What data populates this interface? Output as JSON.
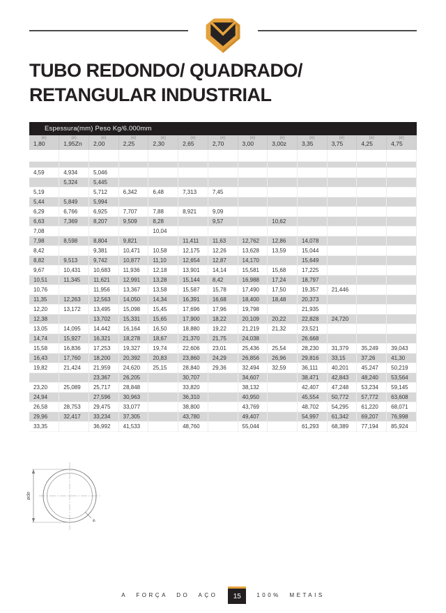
{
  "header": {
    "logo_name": "metais-shield-logo",
    "colors": {
      "gold": "#E5A23C",
      "gold_dark": "#CE8F2F",
      "dark": "#262223",
      "rule": "#4A4A4A"
    }
  },
  "title": {
    "line1": "TUBO REDONDO/ QUADRADO/",
    "line2": "RETANGULAR INDUSTRIAL"
  },
  "table": {
    "caption": "Espessura(mm) Peso Kg/6.000mm",
    "unit_label": "(e)",
    "columns": [
      "1,80",
      "1,95Zn",
      "2,00",
      "2,25",
      "2,30",
      "2,65",
      "2,70",
      "3,00",
      "3,00z",
      "3,35",
      "3,75",
      "4,25",
      "4,75"
    ],
    "rows": [
      [
        "4,59",
        "4,934",
        "5,046",
        "",
        "",
        "",
        "",
        "",
        "",
        "",
        "",
        "",
        ""
      ],
      [
        "",
        "5,324",
        "5,445",
        "",
        "",
        "",
        "",
        "",
        "",
        "",
        "",
        "",
        ""
      ],
      [
        "5,19",
        "",
        "5,712",
        "6,342",
        "6,48",
        "7,313",
        "7,45",
        "",
        "",
        "",
        "",
        "",
        ""
      ],
      [
        "5,44",
        "5,849",
        "5,994",
        "",
        "",
        "",
        "",
        "",
        "",
        "",
        "",
        "",
        ""
      ],
      [
        "6,29",
        "6,766",
        "6,925",
        "7,707",
        "7,88",
        "8,921",
        "9,09",
        "",
        "",
        "",
        "",
        "",
        ""
      ],
      [
        "6,63",
        "7,369",
        "8,207",
        "9,509",
        "8,28",
        "",
        "9,57",
        "",
        "10,62",
        "",
        "",
        "",
        ""
      ],
      [
        "7,08",
        "",
        "",
        "",
        "10,04",
        "",
        "",
        "",
        "",
        "",
        "",
        "",
        ""
      ],
      [
        "7,98",
        "8,598",
        "8,804",
        "9,821",
        "",
        "11,411",
        "11,63",
        "12,762",
        "12,86",
        "14,078",
        "",
        "",
        ""
      ],
      [
        "8,42",
        "",
        "9,381",
        "10,471",
        "10,58",
        "12,175",
        "12,26",
        "13,628",
        "13,59",
        "15,044",
        "",
        "",
        ""
      ],
      [
        "8,82",
        "9,513",
        "9,742",
        "10,877",
        "11,10",
        "12,654",
        "12,87",
        "14,170",
        "",
        "15,649",
        "",
        "",
        ""
      ],
      [
        "9,67",
        "10,431",
        "10,683",
        "11,936",
        "12,18",
        "13,901",
        "14,14",
        "15,581",
        "15,68",
        "17,225",
        "",
        "",
        ""
      ],
      [
        "10,51",
        "11,345",
        "11,621",
        "12,991",
        "13,28",
        "15,144",
        "8,42",
        "16,988",
        "17,24",
        "18,797",
        "",
        "",
        ""
      ],
      [
        "10,76",
        "",
        "11,956",
        "13,367",
        "13,58",
        "15,587",
        "15,78",
        "17,490",
        "17,50",
        "19,357",
        "21,446",
        "",
        ""
      ],
      [
        "11,35",
        "12,263",
        "12,563",
        "14,050",
        "14,34",
        "16,391",
        "16,68",
        "18,400",
        "18,48",
        "20,373",
        "",
        "",
        ""
      ],
      [
        "12,20",
        "13,172",
        "13,495",
        "15,098",
        "15,45",
        "17,696",
        "17,96",
        "19,798",
        "",
        "21,935",
        "",
        "",
        ""
      ],
      [
        "12,38",
        "",
        "13,702",
        "15,331",
        "15,65",
        "17,900",
        "18,22",
        "20,109",
        "20,22",
        "22,828",
        "24,720",
        "",
        ""
      ],
      [
        "13,05",
        "14,095",
        "14,442",
        "16,164",
        "16,50",
        "18,880",
        "19,22",
        "21,219",
        "21,32",
        "23,521",
        "",
        "",
        ""
      ],
      [
        "14,74",
        "15,927",
        "16,321",
        "18,278",
        "18,67",
        "21,370",
        "21,75",
        "24,038",
        "",
        "26,668",
        "",
        "",
        ""
      ],
      [
        "15,58",
        "16,836",
        "17,253",
        "19,327",
        "19,74",
        "22,606",
        "23,01",
        "25,436",
        "25,54",
        "28,230",
        "31,379",
        "35,249",
        "39,043"
      ],
      [
        "16,43",
        "17,760",
        "18,200",
        "20,392",
        "20,83",
        "23,860",
        "24,29",
        "26,856",
        "26,96",
        "29,816",
        "33,15",
        "37,26",
        "41,30"
      ],
      [
        "19,82",
        "21,424",
        "21,959",
        "24,620",
        "25,15",
        "28,840",
        "29,36",
        "32,494",
        "32,59",
        "36,111",
        "40,201",
        "45,247",
        "50,219"
      ],
      [
        "",
        "",
        "23,367",
        "26,205",
        "",
        "30,707",
        "",
        "34,607",
        "",
        "38,471",
        "42,843",
        "48,240",
        "53,564"
      ],
      [
        "23,20",
        "25,089",
        "25,717",
        "28,848",
        "",
        "33,820",
        "",
        "38,132",
        "",
        "42,407",
        "47,248",
        "53,234",
        "59,145"
      ],
      [
        "24,94",
        "",
        "27,596",
        "30,963",
        "",
        "36,310",
        "",
        "40,950",
        "",
        "45,554",
        "50,772",
        "57,772",
        "63,608"
      ],
      [
        "26,58",
        "28,753",
        "29,475",
        "33,077",
        "",
        "38,800",
        "",
        "43,769",
        "",
        "48,702",
        "54,295",
        "61,220",
        "68,071"
      ],
      [
        "29,96",
        "32,417",
        "33,234",
        "37,305",
        "",
        "43,780",
        "",
        "49,407",
        "",
        "54,997",
        "61,342",
        "69,207",
        "76,998"
      ],
      [
        "33,35",
        "",
        "36,992",
        "41,533",
        "",
        "48,760",
        "",
        "55,044",
        "",
        "61,293",
        "68,389",
        "77,194",
        "85,924"
      ]
    ]
  },
  "diagram": {
    "name": "round-tube-cross-section",
    "dimension_label": "øde",
    "thickness_label": "e"
  },
  "footer": {
    "left_text": "A FORÇA DO AÇO",
    "page_number": "15",
    "right_text": "100% METAIS"
  }
}
